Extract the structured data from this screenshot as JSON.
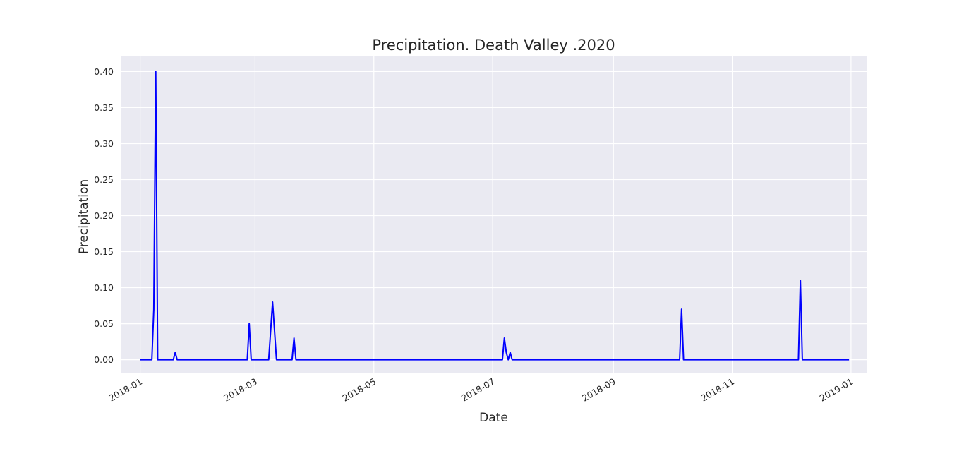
{
  "chart_data": {
    "type": "line",
    "title": "Precipitation. Death Valley .2020",
    "xlabel": "Date",
    "ylabel": "Precipitation",
    "xlim": [
      "2017-12-22",
      "2019-01-09"
    ],
    "ylim": [
      -0.019,
      0.421
    ],
    "grid": true,
    "x_ticks": [
      "2018-01",
      "2018-03",
      "2018-05",
      "2018-07",
      "2018-09",
      "2018-11",
      "2019-01"
    ],
    "y_ticks": [
      "0.00",
      "0.05",
      "0.10",
      "0.15",
      "0.20",
      "0.25",
      "0.30",
      "0.35",
      "0.40"
    ],
    "series": [
      {
        "color": "#0000ff",
        "points": [
          [
            "2018-01-01",
            0.0
          ],
          [
            "2018-01-07",
            0.0
          ],
          [
            "2018-01-08",
            0.07
          ],
          [
            "2018-01-09",
            0.4
          ],
          [
            "2018-01-10",
            0.0
          ],
          [
            "2018-01-18",
            0.0
          ],
          [
            "2018-01-19",
            0.01
          ],
          [
            "2018-01-20",
            0.0
          ],
          [
            "2018-02-25",
            0.0
          ],
          [
            "2018-02-26",
            0.05
          ],
          [
            "2018-02-27",
            0.0
          ],
          [
            "2018-03-08",
            0.0
          ],
          [
            "2018-03-10",
            0.08
          ],
          [
            "2018-03-12",
            0.0
          ],
          [
            "2018-03-20",
            0.0
          ],
          [
            "2018-03-21",
            0.03
          ],
          [
            "2018-03-22",
            0.0
          ],
          [
            "2018-07-06",
            0.0
          ],
          [
            "2018-07-07",
            0.03
          ],
          [
            "2018-07-08",
            0.01
          ],
          [
            "2018-07-09",
            0.0
          ],
          [
            "2018-07-10",
            0.01
          ],
          [
            "2018-07-11",
            0.0
          ],
          [
            "2018-10-05",
            0.0
          ],
          [
            "2018-10-06",
            0.07
          ],
          [
            "2018-10-07",
            0.0
          ],
          [
            "2018-12-05",
            0.0
          ],
          [
            "2018-12-06",
            0.11
          ],
          [
            "2018-12-07",
            0.0
          ],
          [
            "2018-12-31",
            0.0
          ]
        ]
      }
    ]
  }
}
